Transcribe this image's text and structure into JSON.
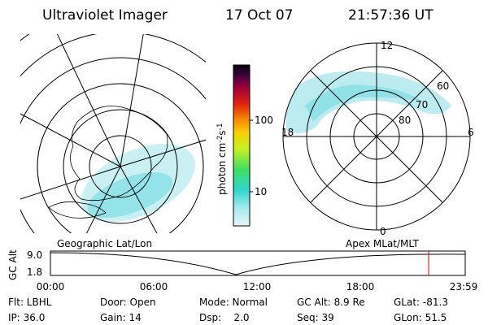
{
  "header": {
    "title": "Ultraviolet Imager",
    "date": "17 Oct 07",
    "time": "21:57:36 UT"
  },
  "colorbar": {
    "label": {
      "base": "photon cm",
      "exp1": "-2",
      "unit2": "s",
      "exp2": "-1"
    },
    "ticks": [
      "100",
      "10"
    ]
  },
  "polar_labels": [
    "12",
    "60",
    "70",
    "80",
    "18",
    "6",
    "0"
  ],
  "map_labels": {
    "left": "Geographic Lat/Lon",
    "right": "Apex MLat/MLT"
  },
  "altitude_plot": {
    "axis_label": "GC Alt",
    "yticks": [
      "9.0",
      "1.8"
    ],
    "xticks": [
      "00:00",
      "06:00",
      "12:00",
      "18:00",
      "23:59"
    ]
  },
  "footer": {
    "rows": [
      [
        "Flt: LBHL",
        "Door: Open",
        "Mode: Normal",
        "GC Alt: 8.9 Re",
        "GLat: -81.3"
      ],
      [
        "IP: 36.0",
        "Gain: 14",
        "Dsp:    2.0",
        "Seq: 39",
        "GLon: 51.5"
      ]
    ]
  }
}
